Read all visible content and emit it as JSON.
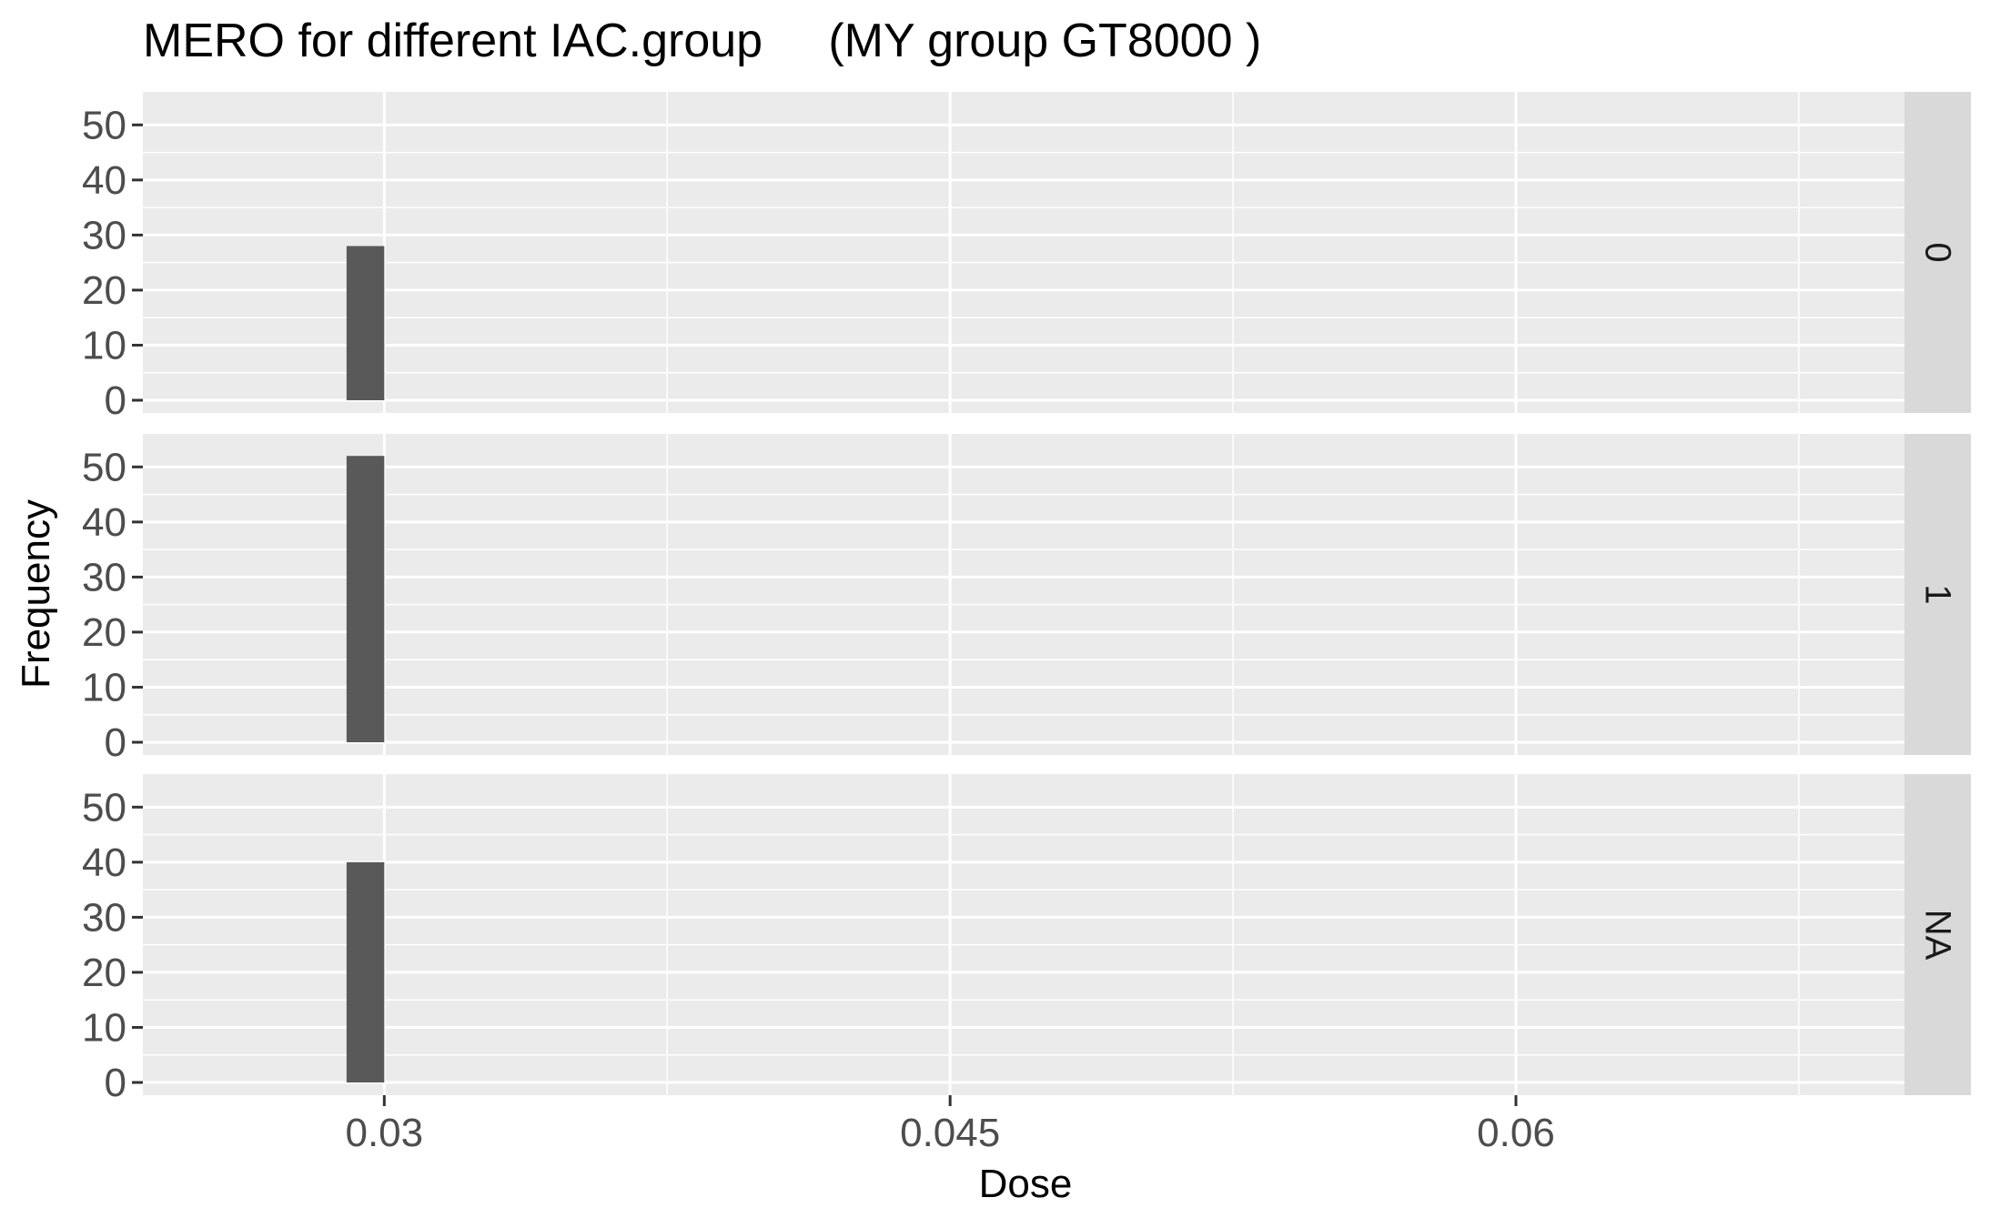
{
  "chart_data": {
    "type": "bar",
    "title": "MERO for different IAC.group     (MY group GT8000 )",
    "xlabel": "Dose",
    "ylabel": "Frequency",
    "facet_variable": "IAC.group",
    "xlim": [
      0.0236,
      0.0703
    ],
    "x_ticks": [
      0.03,
      0.045,
      0.06
    ],
    "x_tick_labels": [
      "0.03",
      "0.045",
      "0.06"
    ],
    "x_minor_ticks": [
      0.0225,
      0.0375,
      0.0525,
      0.0675
    ],
    "ylim": [
      0,
      55
    ],
    "y_ticks": [
      0,
      10,
      20,
      30,
      40,
      50
    ],
    "y_tick_labels": [
      "0",
      "10",
      "20",
      "30",
      "40",
      "50"
    ],
    "bar_range": [
      0.029,
      0.03
    ],
    "grid": true,
    "facets": [
      {
        "label": "0",
        "values": [
          28
        ]
      },
      {
        "label": "1",
        "values": [
          52
        ]
      },
      {
        "label": "NA",
        "values": [
          40
        ]
      }
    ],
    "colors": {
      "panel_background": "#ebebeb",
      "grid": "#ffffff",
      "bar": "#595959",
      "strip_background": "#d9d9d9",
      "tick": "#333333"
    }
  }
}
